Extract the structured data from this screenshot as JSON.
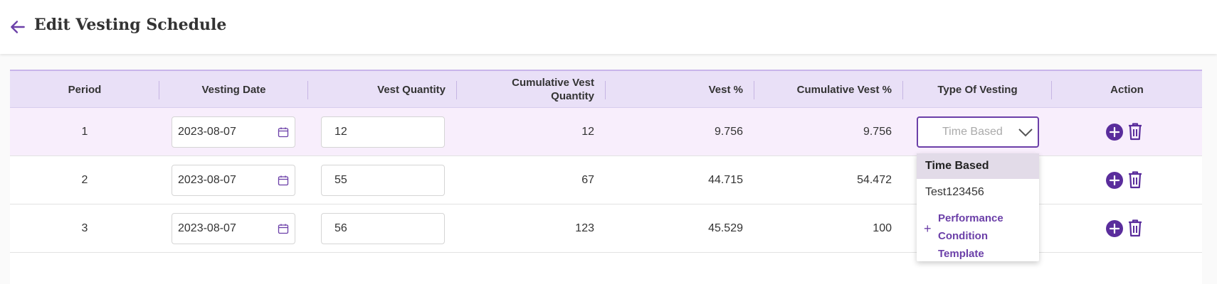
{
  "header": {
    "title": "Edit Vesting Schedule"
  },
  "table": {
    "columns": [
      "Period",
      "Vesting Date",
      "Vest Quantity",
      "Cumulative Vest Quantity",
      "Vest %",
      "Cumulative Vest %",
      "Type Of Vesting",
      "Action"
    ],
    "rows": [
      {
        "period": "1",
        "date": "2023-08-07",
        "quantity": "12",
        "cum_quantity": "12",
        "vest_pct": "9.756",
        "cum_pct": "9.756",
        "type_placeholder": "Time Based"
      },
      {
        "period": "2",
        "date": "2023-08-07",
        "quantity": "55",
        "cum_quantity": "67",
        "vest_pct": "44.715",
        "cum_pct": "54.472"
      },
      {
        "period": "3",
        "date": "2023-08-07",
        "quantity": "56",
        "cum_quantity": "123",
        "vest_pct": "45.529",
        "cum_pct": "100"
      }
    ]
  },
  "dropdown": {
    "options": [
      "Time Based",
      "Test123456"
    ],
    "selected": "Time Based",
    "add_label": "+",
    "add_text": "Performance Condition Template"
  },
  "colors": {
    "accent": "#6b3fa8",
    "header_bg": "#e9e0f7",
    "active_row_bg": "#f8eefc"
  },
  "icons": {
    "back": "arrow-left-icon",
    "calendar": "calendar-icon",
    "chevron": "chevron-down-icon",
    "add": "plus-circle-icon",
    "delete": "trash-icon"
  }
}
